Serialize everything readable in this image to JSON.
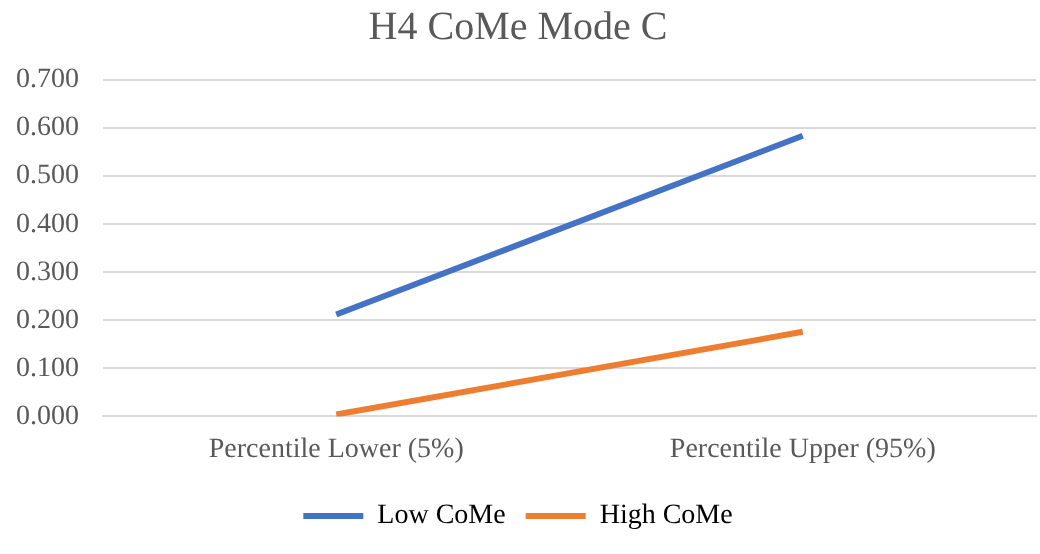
{
  "chart_data": {
    "type": "line",
    "title": "H4 CoMe Mode C",
    "categories": [
      "Percentile Lower (5%)",
      "Percentile Upper (95%)"
    ],
    "series": [
      {
        "name": "Low CoMe",
        "color": "#4472c4",
        "values": [
          0.212,
          0.584
        ]
      },
      {
        "name": "High CoMe",
        "color": "#ed7d31",
        "values": [
          0.004,
          0.176
        ]
      }
    ],
    "ylim": [
      0,
      0.7
    ],
    "yticks": [
      {
        "value": 0,
        "label": "0.000"
      },
      {
        "value": 0.1,
        "label": "0.100"
      },
      {
        "value": 0.2,
        "label": "0.200"
      },
      {
        "value": 0.3,
        "label": "0.300"
      },
      {
        "value": 0.4,
        "label": "0.400"
      },
      {
        "value": 0.5,
        "label": "0.500"
      },
      {
        "value": 0.6,
        "label": "0.600"
      },
      {
        "value": 0.7,
        "label": "0.700"
      }
    ],
    "grid": "y",
    "legend": "bottom",
    "marker": "none",
    "line_style": "solid"
  }
}
